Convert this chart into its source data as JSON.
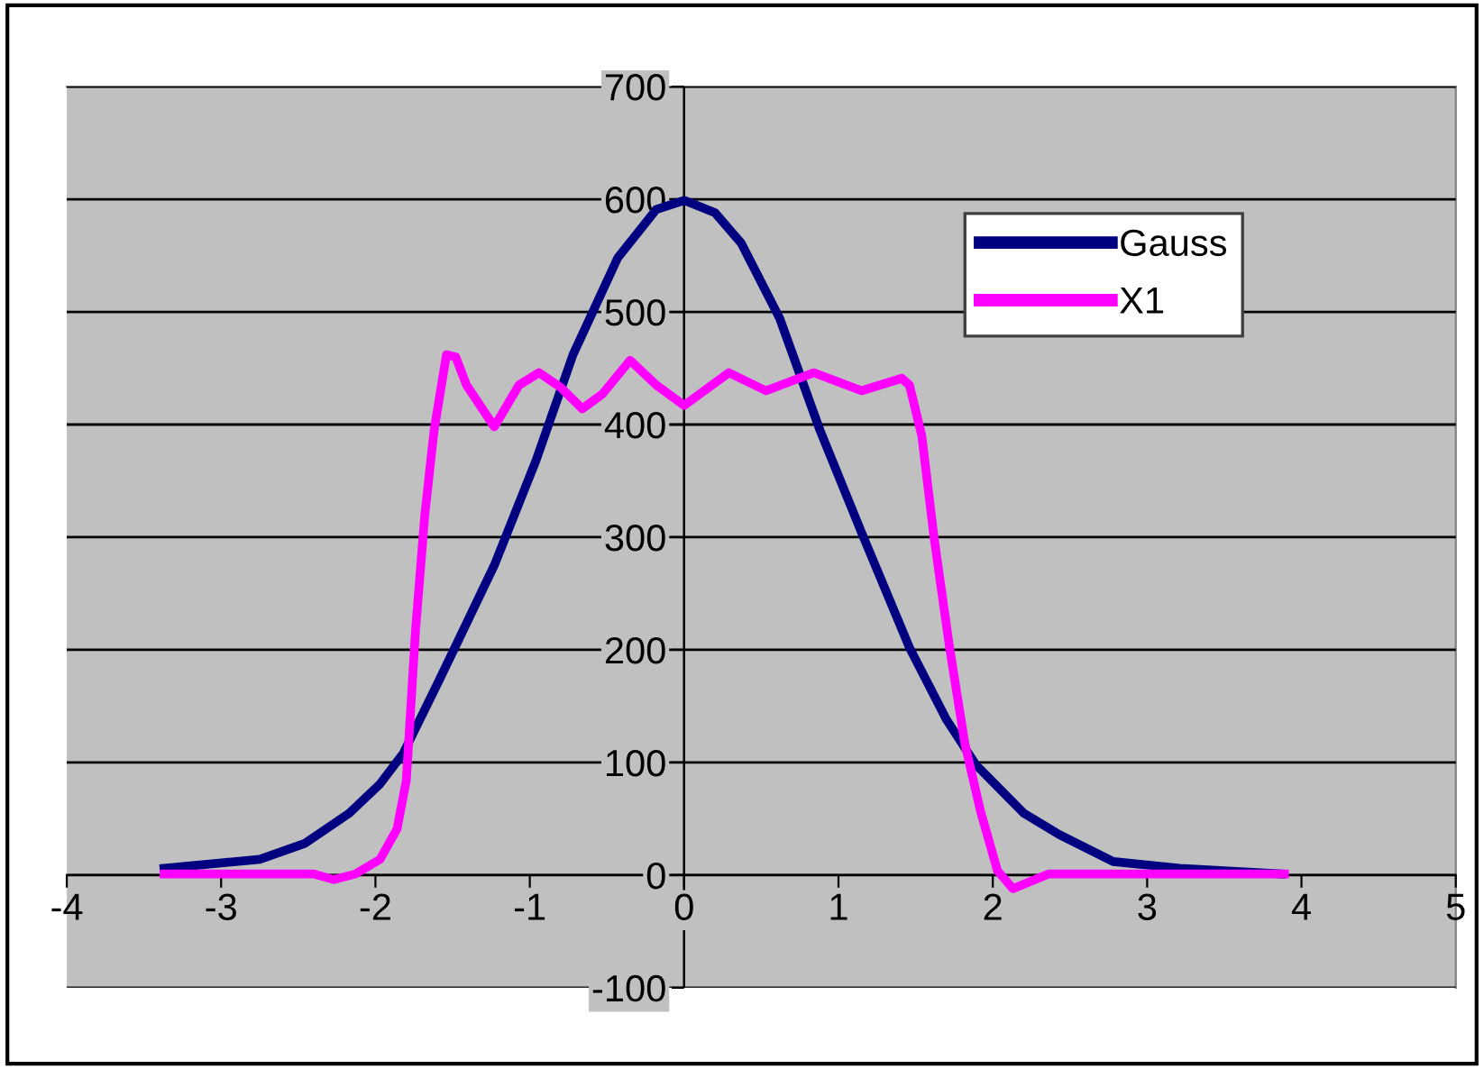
{
  "chart_data": {
    "type": "line",
    "xlim": [
      -4,
      5
    ],
    "ylim": [
      -100,
      700
    ],
    "xticks": [
      -4,
      -3,
      -2,
      -1,
      0,
      1,
      2,
      3,
      4,
      5
    ],
    "yticks": [
      -100,
      0,
      100,
      200,
      300,
      400,
      500,
      600,
      700
    ],
    "grid": "y",
    "legend": "top right",
    "marker": "none",
    "line_style": "solid",
    "series": [
      {
        "name": "Gauss",
        "color": "#000080",
        "x": [
          -3.37,
          -2.75,
          -2.46,
          -2.17,
          -1.97,
          -1.82,
          -1.58,
          -1.23,
          -0.96,
          -0.72,
          -0.43,
          -0.18,
          0,
          0.2,
          0.37,
          0.62,
          0.88,
          1.15,
          1.46,
          1.7,
          1.89,
          2.2,
          2.43,
          2.78,
          3.21,
          3.87
        ],
        "values": [
          6,
          14,
          28,
          55,
          81,
          108,
          175,
          275,
          368,
          462,
          548,
          591,
          599,
          588,
          561,
          494,
          395,
          304,
          202,
          138,
          98,
          55,
          36,
          12,
          6,
          1
        ]
      },
      {
        "name": "X1",
        "color": "#ff00ff",
        "x": [
          -3.37,
          -2.4,
          -2.27,
          -2.13,
          -1.97,
          -1.86,
          -1.8,
          -1.74,
          -1.68,
          -1.62,
          -1.54,
          -1.48,
          -1.41,
          -1.23,
          -1.07,
          -0.94,
          -0.8,
          -0.66,
          -0.53,
          -0.35,
          -0.18,
          0,
          0.29,
          0.53,
          0.84,
          1.15,
          1.41,
          1.46,
          1.54,
          1.62,
          1.72,
          1.82,
          1.92,
          2.03,
          2.13,
          2.36,
          3.89
        ],
        "values": [
          1,
          1,
          -4,
          1,
          14,
          41,
          84,
          218,
          320,
          395,
          462,
          460,
          435,
          398,
          435,
          446,
          433,
          414,
          427,
          457,
          435,
          417,
          446,
          430,
          446,
          430,
          441,
          435,
          390,
          299,
          202,
          116,
          57,
          4,
          -12,
          1,
          1
        ]
      }
    ]
  }
}
